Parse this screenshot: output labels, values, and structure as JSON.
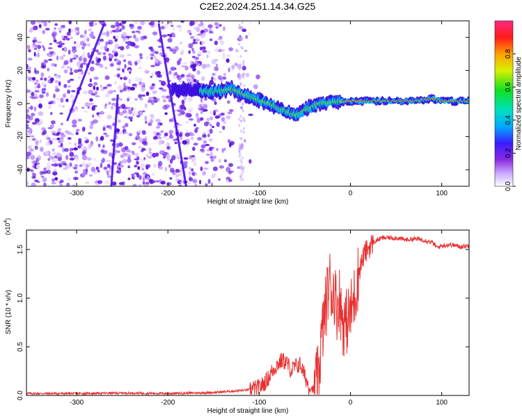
{
  "title": "C2E2.2024.251.14.34.G25",
  "chart_data": [
    {
      "type": "heatmap",
      "name": "spectrogram",
      "xlabel": "Height of straight line (km)",
      "ylabel": "Frequency (Hz)",
      "xlim": [
        -355,
        130
      ],
      "ylim": [
        -50,
        50
      ],
      "xticks": [
        -300,
        -200,
        -100,
        0,
        100
      ],
      "xtick_labels": [
        "-300",
        "-200",
        "-100",
        "0",
        "100"
      ],
      "yticks": [
        -40,
        -20,
        0,
        20,
        40
      ],
      "ytick_labels": [
        "-40",
        "-20",
        "0",
        "20",
        "40"
      ],
      "features": {
        "noise_region_x": [
          -355,
          -115
        ],
        "signal_track": [
          [
            -195,
            9
          ],
          [
            -170,
            8
          ],
          [
            -150,
            7
          ],
          [
            -130,
            9
          ],
          [
            -115,
            5
          ],
          [
            -100,
            2
          ],
          [
            -85,
            -1
          ],
          [
            -70,
            -5
          ],
          [
            -60,
            -7
          ],
          [
            -50,
            -4
          ],
          [
            -35,
            0
          ],
          [
            -20,
            1
          ],
          [
            0,
            1.5
          ],
          [
            30,
            1.5
          ],
          [
            70,
            1.5
          ],
          [
            90,
            3
          ],
          [
            100,
            1.5
          ],
          [
            130,
            1.5
          ]
        ],
        "diagonal_streaks": [
          [
            [
              -270,
              48
            ],
            [
              -310,
              -10
            ]
          ],
          [
            [
              -210,
              48
            ],
            [
              -180,
              -50
            ]
          ],
          [
            [
              -255,
              5
            ],
            [
              -262,
              -50
            ]
          ]
        ]
      },
      "colorbar": {
        "label": "Normalized spectral amplitude",
        "range": [
          0.0,
          1.0
        ],
        "ticks": [
          0.0,
          0.2,
          0.4,
          0.6,
          0.8
        ],
        "tick_labels": [
          "0.0",
          "0.2",
          "0.4",
          "0.6",
          "0.8"
        ]
      }
    },
    {
      "type": "line",
      "name": "snr",
      "xlabel": "Height of straight line (km)",
      "ylabel": "SNR (10 * v/v)",
      "yscale_label": "(x10",
      "yscale_exp": "4",
      "yscale_close": ")",
      "xlim": [
        -355,
        130
      ],
      "ylim": [
        0,
        1.7
      ],
      "xticks": [
        -300,
        -200,
        -100,
        0,
        100
      ],
      "xtick_labels": [
        "-300",
        "-200",
        "-100",
        "0",
        "100"
      ],
      "yticks": [
        0.0,
        0.5,
        1.0,
        1.5
      ],
      "ytick_labels": [
        "0.0",
        "0.5",
        "1.0",
        "1.5"
      ],
      "line_color": "#e83030",
      "series": [
        {
          "name": "SNR",
          "x": [
            -355,
            -300,
            -250,
            -200,
            -150,
            -120,
            -110,
            -100,
            -95,
            -90,
            -85,
            -80,
            -75,
            -70,
            -65,
            -60,
            -55,
            -50,
            -45,
            -40,
            -35,
            -32,
            -28,
            -25,
            -22,
            -20,
            -18,
            -15,
            -12,
            -10,
            -8,
            -5,
            -2,
            0,
            3,
            6,
            10,
            15,
            20,
            25,
            30,
            35,
            40,
            50,
            60,
            70,
            80,
            90,
            95,
            100,
            110,
            120,
            130
          ],
          "y": [
            0.02,
            0.02,
            0.025,
            0.02,
            0.03,
            0.05,
            0.06,
            0.08,
            0.12,
            0.18,
            0.26,
            0.32,
            0.36,
            0.34,
            0.26,
            0.3,
            0.32,
            0.2,
            0.08,
            0.06,
            0.2,
            0.55,
            0.85,
            1.05,
            1.2,
            1.0,
            1.1,
            0.9,
            1.0,
            0.85,
            0.75,
            0.75,
            0.8,
            0.85,
            0.95,
            1.1,
            1.3,
            1.45,
            1.52,
            1.57,
            1.6,
            1.62,
            1.62,
            1.62,
            1.6,
            1.61,
            1.6,
            1.57,
            1.52,
            1.54,
            1.55,
            1.53,
            1.54
          ]
        }
      ]
    }
  ]
}
